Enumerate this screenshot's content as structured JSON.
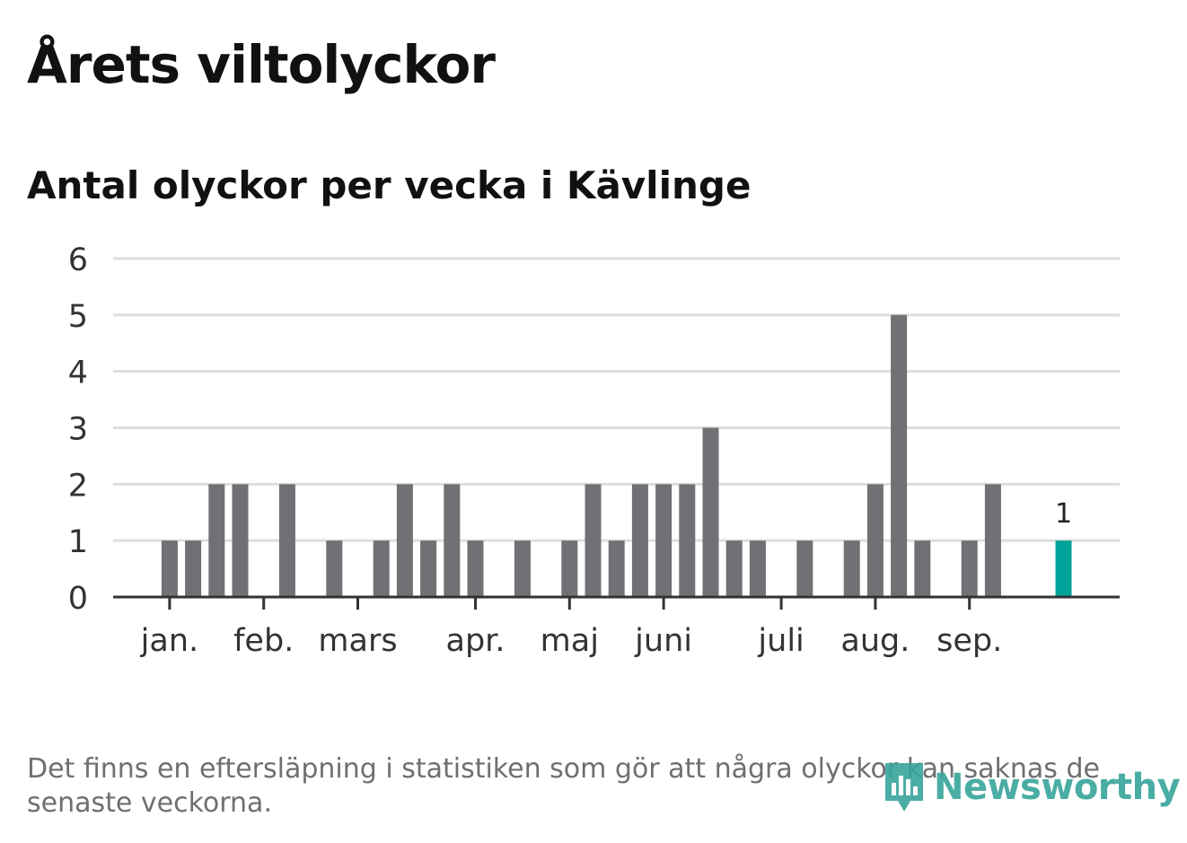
{
  "header": {
    "title": "Årets viltolyckor",
    "subtitle": "Antal olyckor per vecka i Kävlinge"
  },
  "chart_data": {
    "type": "bar",
    "title": "Årets viltolyckor",
    "subtitle": "Antal olyckor per vecka i Kävlinge",
    "xlabel": "",
    "ylabel": "",
    "ylim": [
      0,
      6
    ],
    "yticks": [
      0,
      1,
      2,
      3,
      4,
      5,
      6
    ],
    "grid": true,
    "values": [
      0,
      0,
      1,
      1,
      2,
      2,
      0,
      2,
      0,
      1,
      0,
      1,
      2,
      1,
      2,
      1,
      0,
      1,
      0,
      1,
      2,
      1,
      2,
      2,
      2,
      3,
      1,
      1,
      0,
      1,
      0,
      1,
      2,
      5,
      1,
      0,
      1,
      2,
      0,
      0,
      1
    ],
    "highlight_index": 40,
    "highlight_label": "1",
    "month_labels": [
      {
        "label": "jan.",
        "week": 2
      },
      {
        "label": "feb.",
        "week": 6
      },
      {
        "label": "mars",
        "week": 10
      },
      {
        "label": "apr.",
        "week": 15
      },
      {
        "label": "maj",
        "week": 19
      },
      {
        "label": "juni",
        "week": 23
      },
      {
        "label": "juli",
        "week": 28
      },
      {
        "label": "aug.",
        "week": 32
      },
      {
        "label": "sep.",
        "week": 36
      }
    ],
    "colors": {
      "bar": "#717074",
      "highlight": "#00a399",
      "grid": "#dddddd",
      "axis": "#333333",
      "text": "#333333"
    }
  },
  "footer": {
    "note": "Det finns en eftersläpning i statistiken som gör att några olyckor kan saknas de senaste veckorna.",
    "brand": "Newsworthy"
  }
}
